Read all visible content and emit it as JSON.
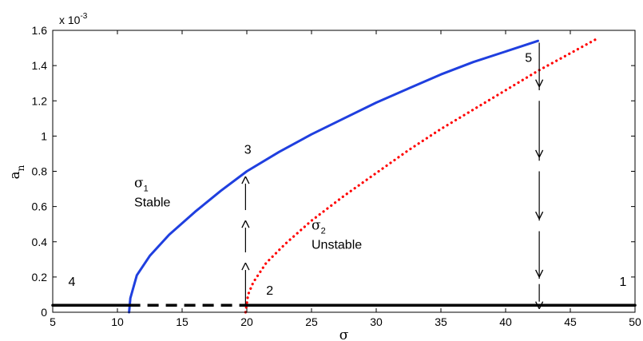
{
  "chart_data": {
    "type": "line",
    "xlabel": "σ",
    "ylabel_base": "a",
    "ylabel_sub": "n",
    "y_multiplier_base": "x 10",
    "y_multiplier_exp": "-3",
    "xlim": [
      5,
      50
    ],
    "ylim": [
      0,
      1.6
    ],
    "xticks": [
      "5",
      "10",
      "15",
      "20",
      "25",
      "30",
      "35",
      "40",
      "45",
      "50"
    ],
    "yticks": [
      "0",
      "0.2",
      "0.4",
      "0.6",
      "0.8",
      "1",
      "1.2",
      "1.4",
      "1.6"
    ],
    "grid": false,
    "colors": {
      "stable": "#1f3fdf",
      "unstable": "#ff0000",
      "trivial": "#000000",
      "arrows": "#000000"
    },
    "series": [
      {
        "style": "solid",
        "color": "#1f3fdf",
        "x": [
          10.9,
          11.0,
          11.5,
          12.5,
          14,
          16,
          18,
          20,
          22.5,
          25,
          27.5,
          30,
          32.5,
          35,
          37.5,
          40,
          42.5
        ],
        "values": [
          0.0,
          0.08,
          0.21,
          0.32,
          0.44,
          0.57,
          0.69,
          0.8,
          0.91,
          1.01,
          1.1,
          1.19,
          1.27,
          1.35,
          1.42,
          1.48,
          1.54
        ]
      },
      {
        "style": "dotted",
        "color": "#ff0000",
        "x": [
          19.9,
          20.1,
          20.5,
          21.5,
          23,
          25,
          27.5,
          30,
          32.5,
          35,
          37.5,
          40,
          42.5,
          45,
          47
        ],
        "values": [
          0.0,
          0.1,
          0.17,
          0.28,
          0.39,
          0.52,
          0.66,
          0.79,
          0.92,
          1.04,
          1.15,
          1.26,
          1.37,
          1.47,
          1.55
        ]
      },
      {
        "style": "solid",
        "color": "#000000",
        "x": [
          5,
          10.9
        ],
        "values": [
          0.04,
          0.04
        ]
      },
      {
        "style": "dashed",
        "color": "#000000",
        "x": [
          10.9,
          19.9
        ],
        "values": [
          0.04,
          0.04
        ]
      },
      {
        "style": "solid",
        "color": "#000000",
        "x": [
          19.9,
          50
        ],
        "values": [
          0.04,
          0.04
        ]
      }
    ],
    "jump_up": {
      "x": 19.9,
      "from": 0.04,
      "to": 0.84,
      "arrowheads_at": [
        0.26,
        0.5,
        0.75
      ]
    },
    "jump_down": {
      "x": 42.6,
      "from": 1.54,
      "to": 0.04,
      "arrowheads_at": [
        1.3,
        0.9,
        0.55,
        0.22,
        0.04
      ]
    },
    "annotations": [
      {
        "text": "4",
        "x": 6.2,
        "y": 0.15
      },
      {
        "text": "2",
        "x": 21.5,
        "y": 0.1
      },
      {
        "text": "1",
        "x": 48.8,
        "y": 0.15
      },
      {
        "text": "3",
        "x": 19.8,
        "y": 0.9
      },
      {
        "text": "5",
        "x": 41.5,
        "y": 1.42
      },
      {
        "text": "Stable",
        "x": 11.3,
        "y": 0.6
      },
      {
        "text": "Unstable",
        "x": 25.0,
        "y": 0.36
      }
    ],
    "sigma_labels": [
      {
        "symbol": "σ",
        "sub": "1",
        "x": 11.3,
        "y": 0.71
      },
      {
        "symbol": "σ",
        "sub": "2",
        "x": 25.0,
        "y": 0.47
      }
    ]
  }
}
